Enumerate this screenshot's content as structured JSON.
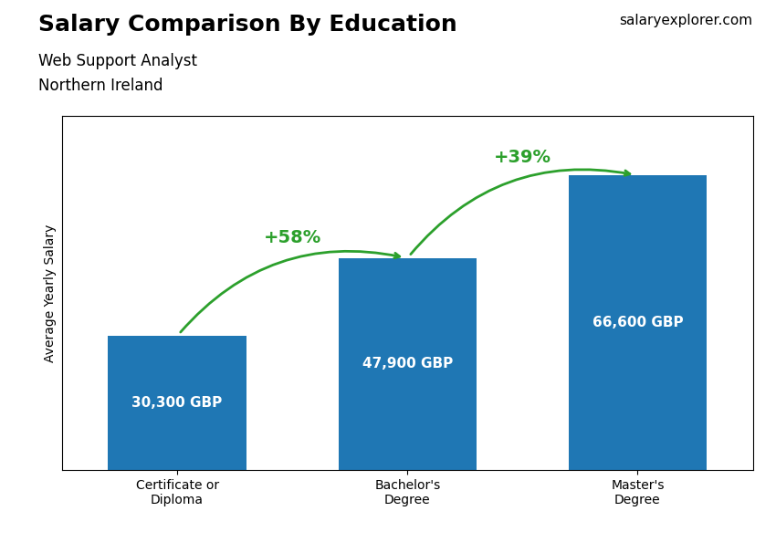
{
  "chart_data": {
    "type": "bar",
    "title": "Salary Comparison By Education",
    "subtitle": [
      "Web Support Analyst",
      "Northern Ireland"
    ],
    "watermark": [
      "salary",
      "explorer.com"
    ],
    "y_label": "Average Yearly Salary",
    "categories": [
      "Certificate or\nDiploma",
      "Bachelor's\nDegree",
      "Master's\nDegree"
    ],
    "values": [
      30300,
      47900,
      66600
    ],
    "value_labels": [
      "30,300 GBP",
      "47,900 GBP",
      "66,600 GBP"
    ],
    "data_labels": true,
    "annotations": [
      "+58%",
      "+39%"
    ],
    "ylim": [
      0,
      80000
    ],
    "yticks": [],
    "tick_labels": "x"
  }
}
